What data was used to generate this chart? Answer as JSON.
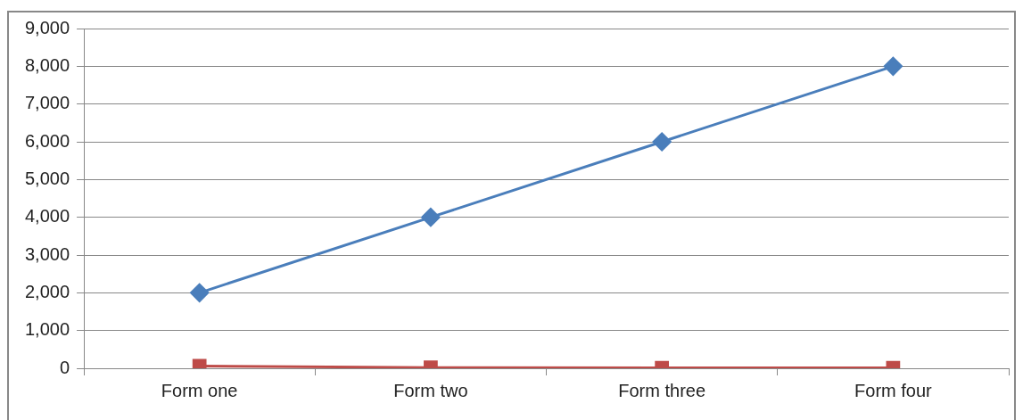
{
  "chart_data": {
    "type": "line",
    "categories": [
      "Form one",
      "Form two",
      "Form three",
      "Form four"
    ],
    "series": [
      {
        "color": "#4a7ebb",
        "values": [
          2000,
          4000,
          6000,
          8000
        ],
        "marker": "diamond"
      },
      {
        "color": "#be4b48",
        "values": [
          60,
          20,
          10,
          10
        ],
        "marker": "square"
      }
    ],
    "ylim": [
      0,
      9000
    ],
    "yticks": [
      {
        "value": 0,
        "label": "0"
      },
      {
        "value": 1000,
        "label": "1,000"
      },
      {
        "value": 2000,
        "label": "2,000"
      },
      {
        "value": 3000,
        "label": "3,000"
      },
      {
        "value": 4000,
        "label": "4,000"
      },
      {
        "value": 5000,
        "label": "5,000"
      },
      {
        "value": 6000,
        "label": "6,000"
      },
      {
        "value": 7000,
        "label": "7,000"
      },
      {
        "value": 8000,
        "label": "8,000"
      },
      {
        "value": 9000,
        "label": "9,000"
      }
    ],
    "grid": "y",
    "line_style": "solid"
  }
}
